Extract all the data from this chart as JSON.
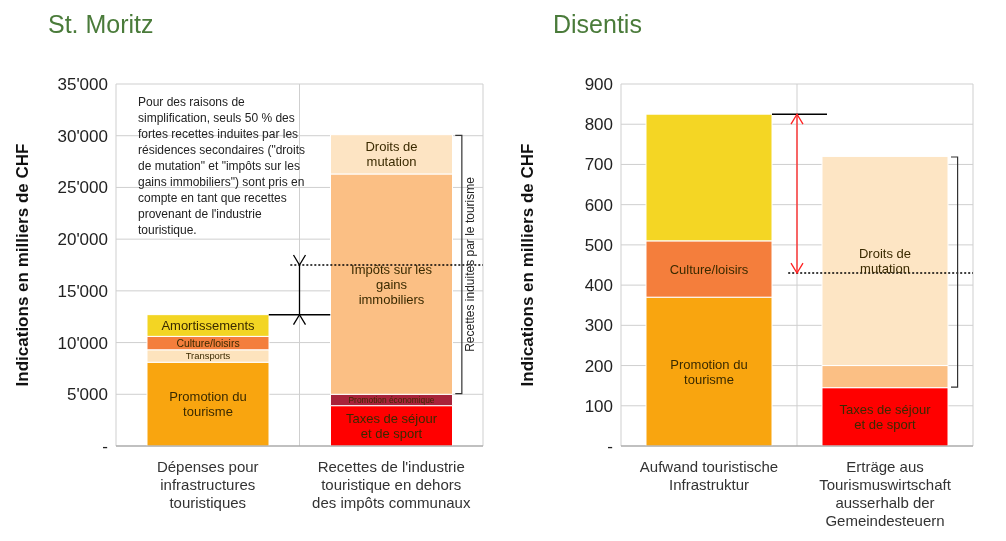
{
  "chart_data": [
    {
      "type": "bar",
      "title": "St. Moritz",
      "ylabel": "Indications en milliers de CHF",
      "stacked": true,
      "grid": true,
      "legend": false,
      "categories": [
        "Dépenses pour infrastructures touristiques",
        "Recettes de l'industrie touristique en dehors des impôts communaux"
      ],
      "ylim": [
        0,
        35000
      ],
      "yticks": [
        {
          "value": 0,
          "label": "-"
        },
        {
          "value": 5000,
          "label": "5'000"
        },
        {
          "value": 10000,
          "label": "10'000"
        },
        {
          "value": 15000,
          "label": "15'000"
        },
        {
          "value": 20000,
          "label": "20'000"
        },
        {
          "value": 25000,
          "label": "25'000"
        },
        {
          "value": 30000,
          "label": "30'000"
        },
        {
          "value": 35000,
          "label": "35'000"
        }
      ],
      "series": [
        {
          "name": "Promotion du tourisme",
          "color": "#f9a50f",
          "values": [
            8100,
            null
          ]
        },
        {
          "name": "Transports",
          "color": "#fde3bd",
          "values": [
            1200,
            null
          ]
        },
        {
          "name": "Culture/loisirs",
          "color": "#f47e3c",
          "values": [
            1300,
            null
          ]
        },
        {
          "name": "Amortissements",
          "color": "#f3d523",
          "values": [
            2100,
            null
          ]
        },
        {
          "name": "Taxes de séjour et de sport",
          "color": "#ff0000",
          "values": [
            null,
            3900
          ]
        },
        {
          "name": "Promotion économique",
          "color": "#a8233a",
          "values": [
            null,
            1100
          ]
        },
        {
          "name": "Impôts sur les gains immobiliers",
          "color": "#fbbf84",
          "values": [
            null,
            21300
          ]
        },
        {
          "name": "Droits de mutation",
          "color": "#fde4c3",
          "values": [
            null,
            3800
          ]
        }
      ],
      "ref_lines": [
        {
          "axis": "y",
          "value": 17500,
          "color": "#000000",
          "line_style": "dotted"
        }
      ],
      "annotations": [
        "Pour des raisons de simplification, seuls 50 % des fortes recettes induites par les résidences secondaires (\"droits de mutation\" et \"impôts sur les gains immobiliers\") sont pris en compte en tant que recettes provenant de l'industrie touristique.",
        "Recettes induites par le tourisme"
      ]
    },
    {
      "type": "bar",
      "title": "Disentis",
      "ylabel": "Indications en milliers de CHF",
      "stacked": true,
      "grid": true,
      "legend": false,
      "categories": [
        "Aufwand touristische Infrastruktur",
        "Erträge aus Tourismuswirtschaft ausserhalb der Gemeindesteuern"
      ],
      "ylim": [
        0,
        900
      ],
      "yticks": [
        {
          "value": 0,
          "label": "-"
        },
        100,
        200,
        300,
        400,
        500,
        600,
        700,
        800,
        900
      ],
      "series": [
        {
          "name": "Promotion du tourisme",
          "color": "#f9a50f",
          "values": [
            370,
            null
          ]
        },
        {
          "name": "Culture/loisirs",
          "color": "#f47e3c",
          "values": [
            140,
            null
          ]
        },
        {
          "color": "#f4d624",
          "values": [
            315,
            null
          ]
        },
        {
          "name": "Taxes de séjour et de sport",
          "color": "#ff0000",
          "values": [
            null,
            145
          ]
        },
        {
          "color": "#fbbf84",
          "values": [
            null,
            55
          ]
        },
        {
          "name": "Droits de mutation",
          "color": "#fde5c4",
          "values": [
            null,
            520
          ]
        }
      ],
      "ref_lines": [
        {
          "axis": "y",
          "value": 430,
          "color": "#000000",
          "line_style": "dotted"
        }
      ]
    }
  ]
}
